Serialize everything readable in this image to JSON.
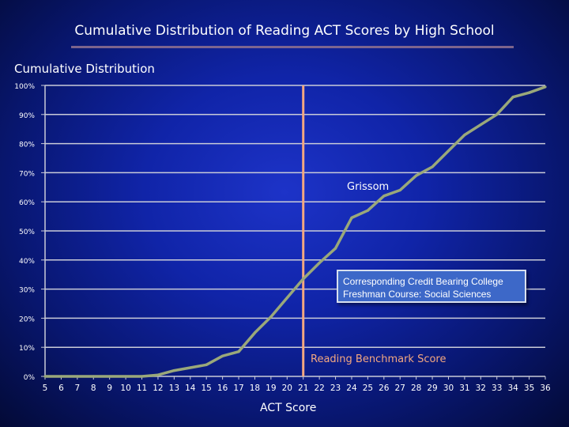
{
  "chart_data": {
    "type": "line",
    "title": "Cumulative Distribution of Reading ACT Scores by High School",
    "ylabel": "Cumulative Distribution",
    "xlabel": "ACT Score",
    "x": [
      5,
      6,
      7,
      8,
      9,
      10,
      11,
      12,
      13,
      14,
      15,
      16,
      17,
      18,
      19,
      20,
      21,
      22,
      23,
      24,
      25,
      26,
      27,
      28,
      29,
      30,
      31,
      32,
      33,
      34,
      35,
      36
    ],
    "series": [
      {
        "name": "Grissom",
        "color": "#9aa87a",
        "values": [
          0,
          0,
          0,
          0,
          0,
          0,
          0,
          0.5,
          2,
          3,
          4,
          7,
          8.5,
          15,
          20.5,
          27,
          33.5,
          39,
          44,
          54.5,
          57,
          62,
          64,
          69,
          72,
          77.5,
          83,
          86.5,
          90,
          96,
          97.5,
          99.5
        ]
      }
    ],
    "ylim": [
      0,
      100
    ],
    "xlim": [
      5,
      36
    ],
    "yticks": [
      "0%",
      "10%",
      "20%",
      "30%",
      "40%",
      "50%",
      "60%",
      "70%",
      "80%",
      "90%",
      "100%"
    ],
    "xticks": [
      "5",
      "6",
      "7",
      "8",
      "9",
      "10",
      "11",
      "12",
      "13",
      "14",
      "15",
      "16",
      "17",
      "18",
      "19",
      "20",
      "21",
      "22",
      "23",
      "24",
      "25",
      "26",
      "27",
      "28",
      "29",
      "30",
      "31",
      "32",
      "33",
      "34",
      "35",
      "36"
    ],
    "grid": true,
    "benchmark": {
      "x": 21,
      "label": "Reading Benchmark Score",
      "color": "#f3a780"
    },
    "callout": "Corresponding Credit Bearing College Freshman Course: Social Sciences"
  }
}
